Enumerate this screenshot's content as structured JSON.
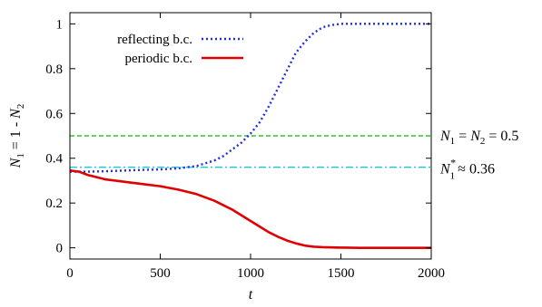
{
  "chart_data": {
    "type": "line",
    "xlabel": "t",
    "ylabel": "N1 = 1 - N2",
    "xlim": [
      0,
      2000
    ],
    "ylim": [
      -0.05,
      1.05
    ],
    "xticks": [
      0,
      500,
      1000,
      1500,
      2000
    ],
    "yticks": [
      0,
      0.2,
      0.4,
      0.6,
      0.8,
      1
    ],
    "legend_position": "top-left",
    "series": [
      {
        "name": "reflecting b.c.",
        "color": "#1f2fe0",
        "dash": "dotted",
        "x": [
          0,
          100,
          200,
          300,
          400,
          500,
          600,
          700,
          800,
          850,
          900,
          950,
          1000,
          1050,
          1100,
          1150,
          1200,
          1250,
          1300,
          1350,
          1400,
          1450,
          1500,
          1600,
          1700,
          1800,
          1900,
          2000
        ],
        "y": [
          0.34,
          0.34,
          0.342,
          0.345,
          0.348,
          0.35,
          0.355,
          0.365,
          0.39,
          0.41,
          0.44,
          0.47,
          0.51,
          0.56,
          0.63,
          0.71,
          0.79,
          0.87,
          0.92,
          0.96,
          0.985,
          0.995,
          1.0,
          1.0,
          1.0,
          1.0,
          1.0,
          1.0
        ]
      },
      {
        "name": "periodic b.c.",
        "color": "#e00000",
        "dash": "solid",
        "x": [
          0,
          50,
          100,
          200,
          300,
          400,
          500,
          600,
          700,
          800,
          900,
          1000,
          1050,
          1100,
          1150,
          1200,
          1250,
          1300,
          1350,
          1400,
          1450,
          1500,
          1600,
          1700,
          1800,
          1900,
          2000
        ],
        "y": [
          0.345,
          0.34,
          0.325,
          0.305,
          0.295,
          0.285,
          0.275,
          0.26,
          0.24,
          0.21,
          0.17,
          0.12,
          0.095,
          0.07,
          0.05,
          0.033,
          0.02,
          0.01,
          0.005,
          0.003,
          0.002,
          0.001,
          0.0,
          0.0,
          0.0,
          0.0,
          0.0
        ]
      }
    ],
    "reference_lines": [
      {
        "label": "N1 = N2 = 0.5",
        "y": 0.5,
        "color": "#22cc22",
        "dash": "dashed"
      },
      {
        "label": "N1* ≈ 0.36",
        "y": 0.36,
        "color": "#22c8d8",
        "dash": "dash-dot"
      }
    ]
  },
  "text": {
    "ylabel_parts": [
      "N",
      "1",
      " = 1 - ",
      "N",
      "2"
    ],
    "annot_half_parts": [
      "N",
      "1",
      " = ",
      "N",
      "2",
      " = 0.5"
    ],
    "annot_star_parts": [
      "N",
      "1",
      "*",
      "≈ 0.36"
    ]
  }
}
